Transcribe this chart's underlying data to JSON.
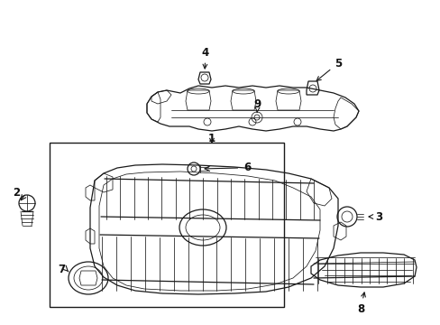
{
  "background_color": "#ffffff",
  "line_color": "#1a1a1a",
  "label_color": "#111111",
  "fig_width": 4.89,
  "fig_height": 3.6,
  "dpi": 100
}
